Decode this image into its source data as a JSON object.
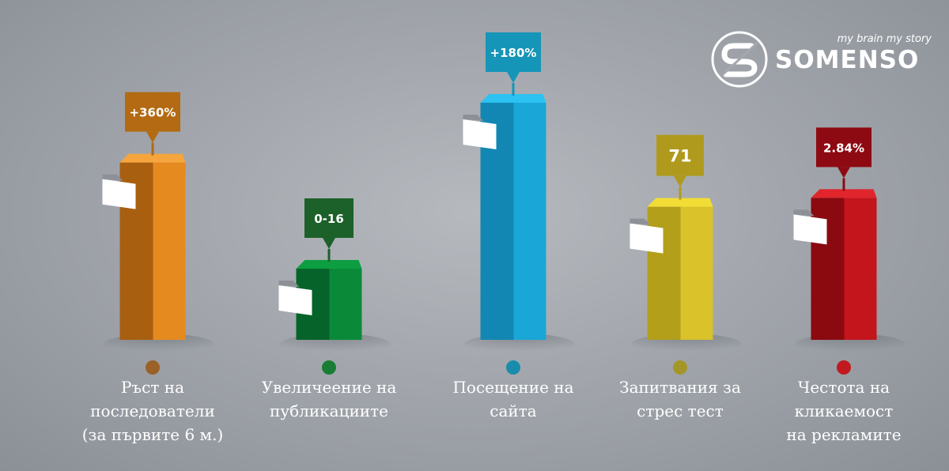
{
  "brand": {
    "tagline": "my brain my story",
    "name": "SOMENSO",
    "logo_icon": "somenso-s-mark-icon"
  },
  "chart_data": {
    "type": "bar",
    "style": "3d-columns-with-callouts",
    "title": "",
    "xlabel": "",
    "ylabel": "",
    "grid": false,
    "legend": "none",
    "categories": [
      [
        "Ръст на",
        "последователи",
        "(за първите 6 м.)"
      ],
      [
        "Увеличеение на",
        "публикациите"
      ],
      [
        "Посещение на",
        "сайта"
      ],
      [
        "Запитвания за",
        "стрес тест"
      ],
      [
        "Честота на",
        "кликаемост",
        "на рекламите"
      ]
    ],
    "data_labels": [
      "+360%",
      "0-16",
      "+180%",
      "71",
      "2.84%"
    ],
    "relative_heights": [
      0.68,
      0.2,
      0.95,
      0.48,
      0.52
    ],
    "colors": [
      {
        "front": "#e58a1f",
        "side": "#a85f10",
        "top": "#f5a53c",
        "callout": "#b36a12",
        "dot": "#9a6128"
      },
      {
        "front": "#0a8a38",
        "side": "#06632a",
        "top": "#0d9e41",
        "callout": "#1c6129",
        "dot": "#1a7d36"
      },
      {
        "front": "#1aa6d6",
        "side": "#1287b4",
        "top": "#2cc2f2",
        "callout": "#1595b8",
        "dot": "#1a8cab"
      },
      {
        "front": "#d9c22a",
        "side": "#b39f1a",
        "top": "#f2dd36",
        "callout": "#b09a1e",
        "dot": "#a49528"
      },
      {
        "front": "#c4141c",
        "side": "#8a0a10",
        "top": "#e0252c",
        "callout": "#8e0a12",
        "dot": "#c01a20"
      }
    ]
  }
}
